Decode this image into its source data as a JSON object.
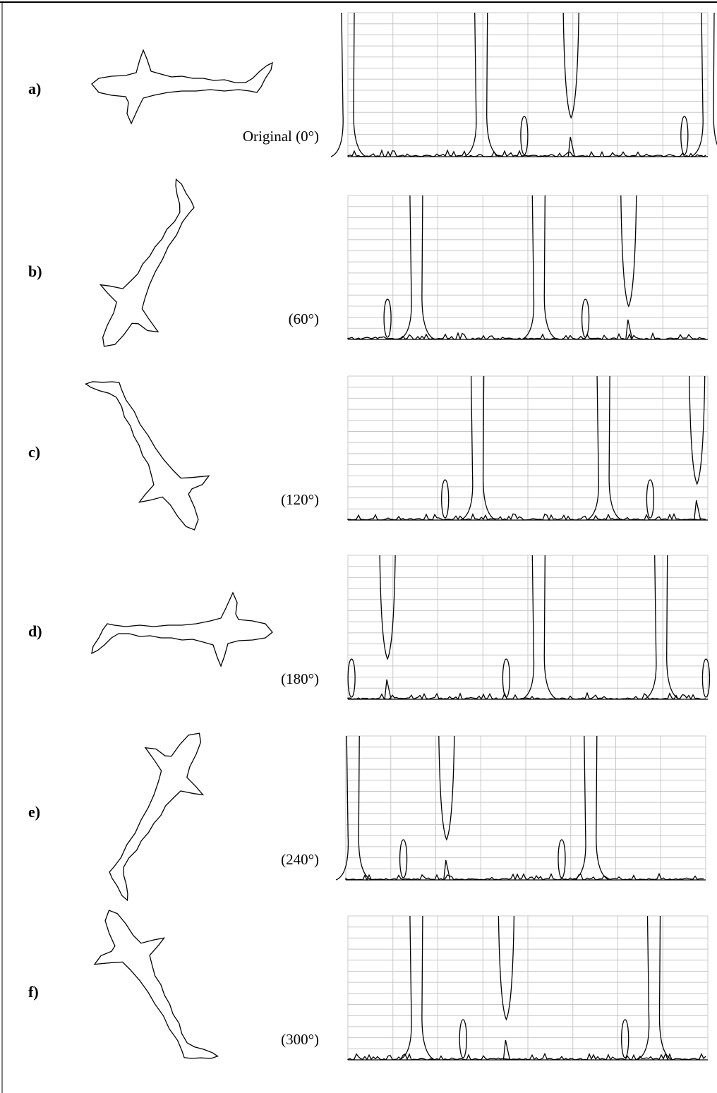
{
  "panels": [
    {
      "label": "a)",
      "caption": "Original (0°)"
    },
    {
      "label": "b)",
      "caption": "(60°)"
    },
    {
      "label": "c)",
      "caption": "(120°)"
    },
    {
      "label": "d)",
      "caption": "(180°)"
    },
    {
      "label": "e)",
      "caption": "(240°)"
    },
    {
      "label": "f)",
      "caption": "(300°)"
    }
  ]
}
